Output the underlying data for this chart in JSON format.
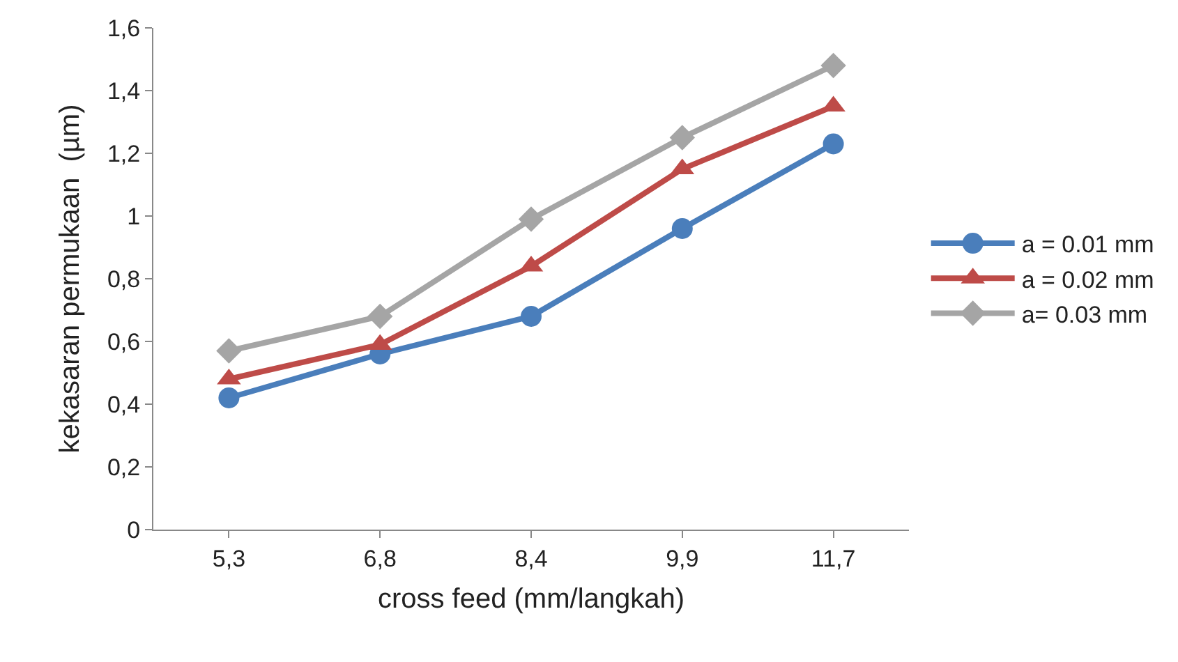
{
  "chart_data": {
    "type": "line",
    "xlabel": "cross feed (mm/langkah)",
    "ylabel": "kekasaran permukaan  (µm)",
    "categories": [
      "5,3",
      "6,8",
      "8,4",
      "9,9",
      "11,7"
    ],
    "series": [
      {
        "name": "a = 0.01 mm",
        "color": "#4a7ebb",
        "marker": "circle",
        "values": [
          0.42,
          0.56,
          0.68,
          0.96,
          1.23
        ]
      },
      {
        "name": "a = 0.02 mm",
        "color": "#be4b48",
        "marker": "triangle",
        "values": [
          0.48,
          0.59,
          0.84,
          1.15,
          1.35
        ]
      },
      {
        "name": "a= 0.03 mm",
        "color": "#a5a5a5",
        "marker": "diamond",
        "values": [
          0.57,
          0.68,
          0.99,
          1.25,
          1.48
        ]
      }
    ],
    "ylim": [
      0,
      1.6
    ],
    "yticks": [
      0,
      {
        "value": 0.2,
        "label": "0,2"
      },
      {
        "value": 0.4,
        "label": "0,4"
      },
      {
        "value": 0.6,
        "label": "0,6"
      },
      {
        "value": 0.8,
        "label": "0,8"
      },
      1,
      {
        "value": 1.2,
        "label": "1,2"
      },
      {
        "value": 1.4,
        "label": "1,4"
      },
      {
        "value": 1.6,
        "label": "1,6"
      }
    ],
    "grid": false,
    "legend": "right",
    "line_style": "solid"
  }
}
